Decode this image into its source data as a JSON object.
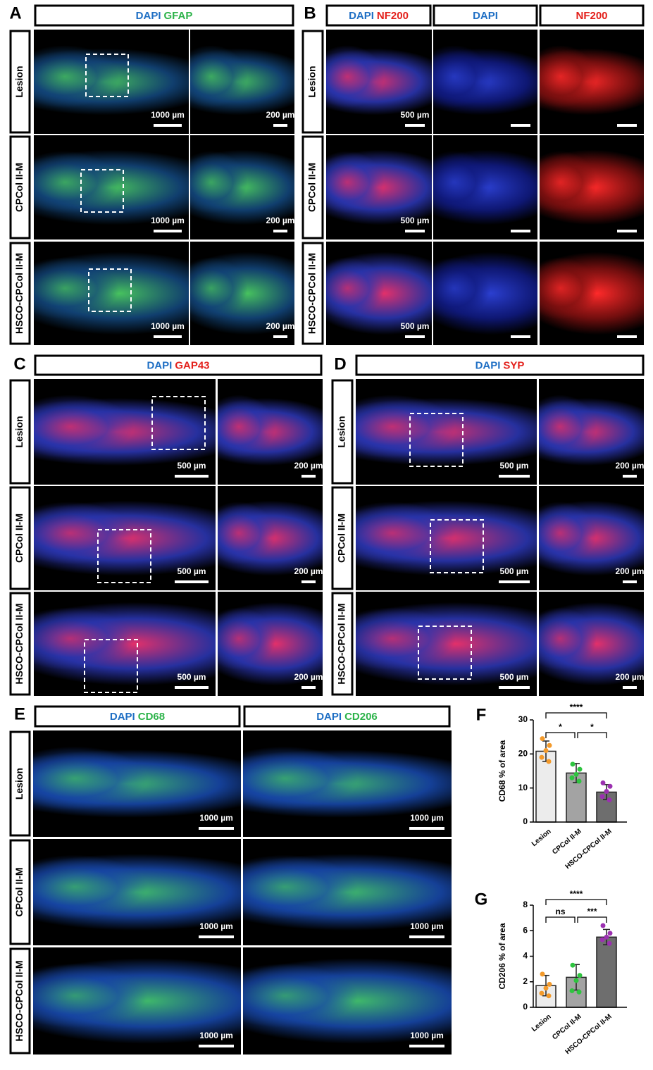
{
  "panels": [
    {
      "letter": "A",
      "headers": [
        [
          {
            "text": "DAPI",
            "color": "#1f6fc4"
          },
          {
            "text": "GFAP",
            "color": "#2db34a"
          }
        ]
      ],
      "rows": [
        "Lesion",
        "CPCol II-M",
        "HSCO-CPCol II-M"
      ],
      "scale_labels": [
        "1000 µm",
        "200 µm"
      ]
    },
    {
      "letter": "B",
      "headers": [
        [
          {
            "text": "DAPI",
            "color": "#1f6fc4"
          },
          {
            "text": "NF200",
            "color": "#e3201b"
          }
        ],
        [
          {
            "text": "DAPI",
            "color": "#1f6fc4"
          }
        ],
        [
          {
            "text": "NF200",
            "color": "#e3201b"
          }
        ]
      ],
      "rows": [
        "Lesion",
        "CPCol II-M",
        "HSCO-CPCol II-M"
      ],
      "scale_labels": [
        "500 µm"
      ]
    },
    {
      "letter": "C",
      "headers": [
        [
          {
            "text": "DAPI",
            "color": "#1f6fc4"
          },
          {
            "text": "GAP43",
            "color": "#e3201b"
          }
        ]
      ],
      "rows": [
        "Lesion",
        "CPCol II-M",
        "HSCO-CPCol II-M"
      ],
      "scale_labels": [
        "500 µm",
        "200 µm"
      ]
    },
    {
      "letter": "D",
      "headers": [
        [
          {
            "text": "DAPI",
            "color": "#1f6fc4"
          },
          {
            "text": "SYP",
            "color": "#e3201b"
          }
        ]
      ],
      "rows": [
        "Lesion",
        "CPCol II-M",
        "HSCO-CPCol II-M"
      ],
      "scale_labels": [
        "500 µm",
        "200 µm"
      ]
    },
    {
      "letter": "E",
      "headers": [
        [
          {
            "text": "DAPI",
            "color": "#1f6fc4"
          },
          {
            "text": "CD68",
            "color": "#2db34a"
          }
        ],
        [
          {
            "text": "DAPI",
            "color": "#1f6fc4"
          },
          {
            "text": "CD206",
            "color": "#2db34a"
          }
        ]
      ],
      "rows": [
        "Lesion",
        "CPCol II-M",
        "HSCO-CPCol II-M"
      ],
      "scale_labels": [
        "1000 µm",
        "1000 µm"
      ]
    }
  ],
  "chart_data": [
    {
      "type": "bar",
      "letter": "F",
      "y_label": "CD68 % of area",
      "categories": [
        "Lesion",
        "CPCol II-M",
        "HSCO-CPCol II-M"
      ],
      "values": [
        20.8,
        14.4,
        8.8
      ],
      "errors": [
        3.0,
        2.8,
        2.2
      ],
      "colors": [
        "#ececec",
        "#a3a3a3",
        "#6e6e6e"
      ],
      "points": [
        [
          24.5,
          22.5,
          21,
          19,
          17.8
        ],
        [
          17,
          15.5,
          14,
          13,
          12
        ],
        [
          11.5,
          10.5,
          9,
          7.5,
          6.5
        ]
      ],
      "point_colors": [
        "#f39a2b",
        "#2ec43f",
        "#9b30b0"
      ],
      "ylim": [
        0,
        30
      ],
      "yticks": [
        0,
        10,
        20,
        30
      ],
      "comparisons": [
        {
          "groups": [
            0,
            2
          ],
          "label": "****"
        },
        {
          "groups": [
            0,
            1
          ],
          "label": "*"
        },
        {
          "groups": [
            1,
            2
          ],
          "label": "*"
        }
      ]
    },
    {
      "type": "bar",
      "letter": "G",
      "y_label": "CD206 % of area",
      "categories": [
        "Lesion",
        "CPCol II-M",
        "HSCO-CPCol II-M"
      ],
      "values": [
        1.7,
        2.35,
        5.5
      ],
      "errors": [
        0.8,
        1.0,
        0.6
      ],
      "colors": [
        "#ececec",
        "#a3a3a3",
        "#6e6e6e"
      ],
      "points": [
        [
          2.6,
          1.8,
          1.5,
          1.1,
          0.9
        ],
        [
          3.3,
          2.5,
          2.1,
          1.3,
          1.2
        ],
        [
          6.4,
          5.8,
          5.5,
          5.3,
          5.0
        ]
      ],
      "point_colors": [
        "#f39a2b",
        "#2ec43f",
        "#9b30b0"
      ],
      "ylim": [
        0,
        8
      ],
      "yticks": [
        0,
        2,
        4,
        6,
        8
      ],
      "comparisons": [
        {
          "groups": [
            0,
            2
          ],
          "label": "****"
        },
        {
          "groups": [
            0,
            1
          ],
          "label": "ns"
        },
        {
          "groups": [
            1,
            2
          ],
          "label": "***"
        }
      ]
    }
  ]
}
